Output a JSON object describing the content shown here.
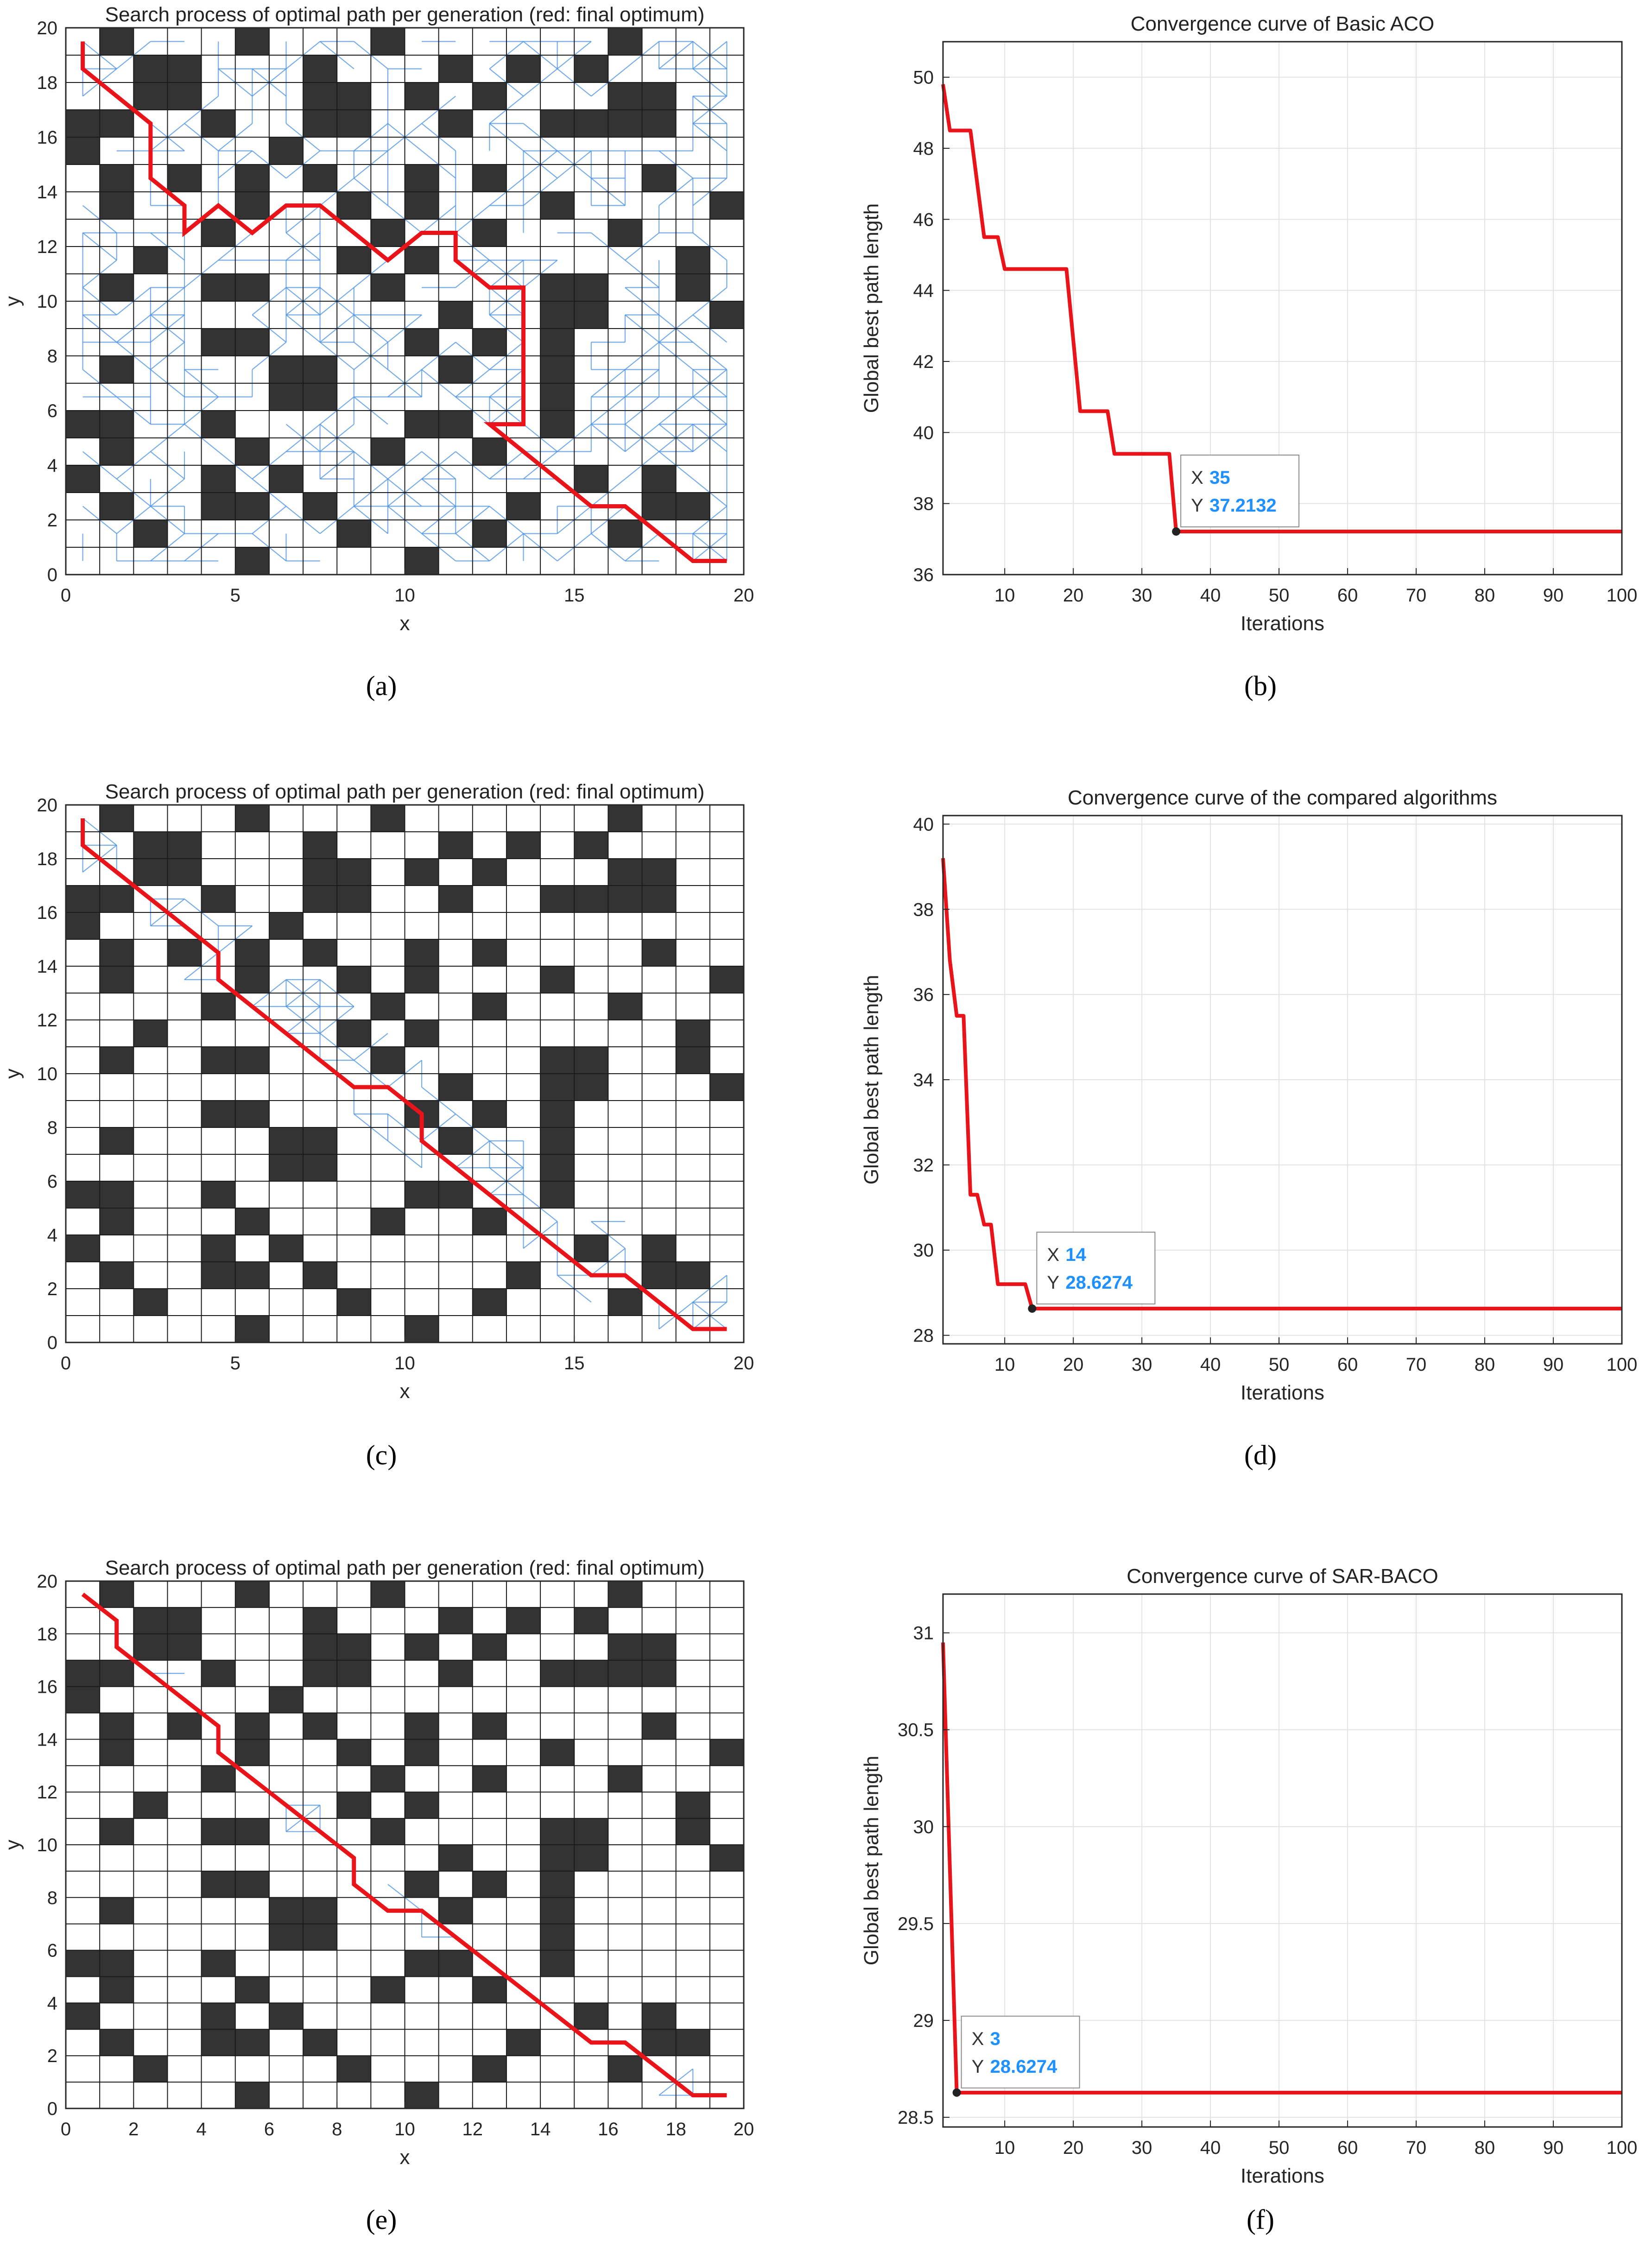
{
  "caption_labels": [
    "(a)",
    "(b)",
    "(c)",
    "(d)",
    "(e)",
    "(f)"
  ],
  "colors": {
    "path": "#e8141a",
    "search": "#4a90e2",
    "obstacle": "#333333",
    "grid": "#1a1a1a",
    "tip_value": "#1e90ff"
  },
  "obstacles": [
    [
      1,
      19
    ],
    [
      5,
      19
    ],
    [
      9,
      19
    ],
    [
      16,
      19
    ],
    [
      2,
      18
    ],
    [
      3,
      18
    ],
    [
      7,
      18
    ],
    [
      11,
      18
    ],
    [
      13,
      18
    ],
    [
      15,
      18
    ],
    [
      2,
      17
    ],
    [
      3,
      17
    ],
    [
      7,
      17
    ],
    [
      8,
      17
    ],
    [
      10,
      17
    ],
    [
      12,
      17
    ],
    [
      16,
      17
    ],
    [
      17,
      17
    ],
    [
      0,
      16
    ],
    [
      1,
      16
    ],
    [
      4,
      16
    ],
    [
      7,
      16
    ],
    [
      8,
      16
    ],
    [
      11,
      16
    ],
    [
      14,
      16
    ],
    [
      15,
      16
    ],
    [
      16,
      16
    ],
    [
      17,
      16
    ],
    [
      0,
      15
    ],
    [
      6,
      15
    ],
    [
      1,
      14
    ],
    [
      3,
      14
    ],
    [
      5,
      14
    ],
    [
      7,
      14
    ],
    [
      10,
      14
    ],
    [
      12,
      14
    ],
    [
      17,
      14
    ],
    [
      1,
      13
    ],
    [
      5,
      13
    ],
    [
      8,
      13
    ],
    [
      10,
      13
    ],
    [
      14,
      13
    ],
    [
      19,
      13
    ],
    [
      4,
      12
    ],
    [
      9,
      12
    ],
    [
      12,
      12
    ],
    [
      16,
      12
    ],
    [
      2,
      11
    ],
    [
      8,
      11
    ],
    [
      10,
      11
    ],
    [
      18,
      11
    ],
    [
      1,
      10
    ],
    [
      4,
      10
    ],
    [
      5,
      10
    ],
    [
      9,
      10
    ],
    [
      14,
      10
    ],
    [
      15,
      10
    ],
    [
      18,
      10
    ],
    [
      11,
      9
    ],
    [
      14,
      9
    ],
    [
      15,
      9
    ],
    [
      19,
      9
    ],
    [
      4,
      8
    ],
    [
      5,
      8
    ],
    [
      10,
      8
    ],
    [
      12,
      8
    ],
    [
      14,
      8
    ],
    [
      1,
      7
    ],
    [
      6,
      7
    ],
    [
      7,
      7
    ],
    [
      11,
      7
    ],
    [
      14,
      7
    ],
    [
      6,
      6
    ],
    [
      7,
      6
    ],
    [
      14,
      6
    ],
    [
      0,
      5
    ],
    [
      1,
      5
    ],
    [
      4,
      5
    ],
    [
      10,
      5
    ],
    [
      11,
      5
    ],
    [
      14,
      5
    ],
    [
      1,
      4
    ],
    [
      5,
      4
    ],
    [
      9,
      4
    ],
    [
      12,
      4
    ],
    [
      0,
      3
    ],
    [
      4,
      3
    ],
    [
      6,
      3
    ],
    [
      15,
      3
    ],
    [
      17,
      3
    ],
    [
      1,
      2
    ],
    [
      4,
      2
    ],
    [
      5,
      2
    ],
    [
      7,
      2
    ],
    [
      13,
      2
    ],
    [
      17,
      2
    ],
    [
      18,
      2
    ],
    [
      2,
      1
    ],
    [
      8,
      1
    ],
    [
      12,
      1
    ],
    [
      16,
      1
    ],
    [
      5,
      0
    ],
    [
      10,
      0
    ]
  ],
  "charts": [
    {
      "id": "a",
      "type": "grid-path",
      "title": "Search process of optimal path per generation (red: final optimum)",
      "xlabel": "x",
      "ylabel": "y",
      "xlim": [
        0,
        20
      ],
      "ylim": [
        0,
        20
      ],
      "xticks": [
        0,
        5,
        10,
        15,
        20
      ],
      "yticks": [
        0,
        2,
        4,
        6,
        8,
        10,
        12,
        14,
        16,
        18,
        20
      ],
      "search_density": 0.58,
      "path": [
        [
          0.5,
          19.5
        ],
        [
          0.5,
          18.5
        ],
        [
          2.5,
          16.5
        ],
        [
          2.5,
          14.5
        ],
        [
          3.5,
          13.5
        ],
        [
          3.5,
          12.5
        ],
        [
          4.5,
          13.5
        ],
        [
          5.5,
          12.5
        ],
        [
          6.5,
          13.5
        ],
        [
          7.5,
          13.5
        ],
        [
          9.5,
          11.5
        ],
        [
          10.5,
          12.5
        ],
        [
          11.5,
          12.5
        ],
        [
          11.5,
          11.5
        ],
        [
          12.5,
          10.5
        ],
        [
          13.5,
          10.5
        ],
        [
          13.5,
          5.5
        ],
        [
          12.5,
          5.5
        ],
        [
          15.5,
          2.5
        ],
        [
          16.5,
          2.5
        ],
        [
          18.5,
          0.5
        ],
        [
          19.5,
          0.5
        ]
      ]
    },
    {
      "id": "b",
      "type": "line",
      "title": "Convergence curve of Basic ACO",
      "xlabel": "Iterations",
      "ylabel": "Global best path length",
      "xlim": [
        1,
        100
      ],
      "ylim": [
        36,
        51
      ],
      "xticks": [
        10,
        20,
        30,
        40,
        50,
        60,
        70,
        80,
        90,
        100
      ],
      "yticks": [
        36,
        38,
        40,
        42,
        44,
        46,
        48,
        50
      ],
      "x": [
        1,
        2,
        5,
        7,
        9,
        10,
        19,
        21,
        25,
        26,
        34,
        35,
        100
      ],
      "y": [
        49.8,
        48.5,
        48.5,
        45.5,
        45.5,
        44.6,
        44.6,
        40.6,
        40.6,
        39.4,
        39.4,
        37.2132,
        37.2132
      ],
      "tip": {
        "x": 35,
        "y": 37.2132,
        "x_label": "X",
        "y_label": "Y",
        "x_text": "35",
        "y_text": "37.2132"
      }
    },
    {
      "id": "c",
      "type": "grid-path",
      "title": "Search process of optimal path per generation (red: final optimum)",
      "xlabel": "x",
      "ylabel": "y",
      "xlim": [
        0,
        20
      ],
      "ylim": [
        0,
        20
      ],
      "xticks": [
        0,
        5,
        10,
        15,
        20
      ],
      "yticks": [
        0,
        2,
        4,
        6,
        8,
        10,
        12,
        14,
        16,
        18,
        20
      ],
      "search_band": [
        [
          1,
          18.5
        ],
        [
          3,
          16.5
        ],
        [
          4.5,
          14.5
        ],
        [
          6,
          13.5
        ],
        [
          8,
          11.5
        ],
        [
          10,
          9
        ],
        [
          12,
          7
        ],
        [
          13.5,
          5
        ],
        [
          16,
          3
        ],
        [
          18.5,
          1.5
        ]
      ],
      "search_spread": 1.6,
      "path": [
        [
          0.5,
          19.5
        ],
        [
          0.5,
          18.5
        ],
        [
          4.5,
          14.5
        ],
        [
          4.5,
          13.5
        ],
        [
          8.5,
          9.5
        ],
        [
          9.5,
          9.5
        ],
        [
          10.5,
          8.5
        ],
        [
          10.5,
          7.5
        ],
        [
          15.5,
          2.5
        ],
        [
          16.5,
          2.5
        ],
        [
          18.5,
          0.5
        ],
        [
          19.5,
          0.5
        ]
      ]
    },
    {
      "id": "d",
      "type": "line",
      "title": "Convergence curve of the compared algorithms",
      "xlabel": "Iterations",
      "ylabel": "Global best path length",
      "xlim": [
        1,
        100
      ],
      "ylim": [
        27.8,
        40.2
      ],
      "xticks": [
        10,
        20,
        30,
        40,
        50,
        60,
        70,
        80,
        90,
        100
      ],
      "yticks": [
        28,
        30,
        32,
        34,
        36,
        38,
        40
      ],
      "x": [
        1,
        2,
        3,
        4,
        5,
        6,
        7,
        8,
        9,
        10,
        13,
        14,
        100
      ],
      "y": [
        39.2,
        36.8,
        35.5,
        35.5,
        31.3,
        31.3,
        30.6,
        30.6,
        29.2,
        29.2,
        29.2,
        28.6274,
        28.6274
      ],
      "tip": {
        "x": 14,
        "y": 28.6274,
        "x_label": "X",
        "y_label": "Y",
        "x_text": "14",
        "y_text": "28.6274"
      }
    },
    {
      "id": "e",
      "type": "grid-path",
      "title": "Search process of optimal path per generation (red: final optimum)",
      "xlabel": "x",
      "ylabel": "y",
      "xlim": [
        0,
        20
      ],
      "ylim": [
        0,
        20
      ],
      "xticks": [
        0,
        2,
        4,
        6,
        8,
        10,
        12,
        14,
        16,
        18,
        20
      ],
      "yticks": [
        0,
        2,
        4,
        6,
        8,
        10,
        12,
        14,
        16,
        18,
        20
      ],
      "search_band": [
        [
          1,
          18.5
        ],
        [
          3,
          16.5
        ],
        [
          5,
          13.5
        ],
        [
          7,
          11
        ],
        [
          9,
          8.5
        ],
        [
          11,
          7
        ],
        [
          13,
          5.5
        ],
        [
          15.5,
          3
        ],
        [
          18,
          1
        ]
      ],
      "search_spread": 0.8,
      "path": [
        [
          0.5,
          19.5
        ],
        [
          1.5,
          18.5
        ],
        [
          1.5,
          17.5
        ],
        [
          4.5,
          14.5
        ],
        [
          4.5,
          13.5
        ],
        [
          8.5,
          9.5
        ],
        [
          8.5,
          8.5
        ],
        [
          9.5,
          7.5
        ],
        [
          10.5,
          7.5
        ],
        [
          15.5,
          2.5
        ],
        [
          16.5,
          2.5
        ],
        [
          18.5,
          0.5
        ],
        [
          19.5,
          0.5
        ]
      ]
    },
    {
      "id": "f",
      "type": "line",
      "title": "Convergence curve of SAR-BACO",
      "xlabel": "Iterations",
      "ylabel": "Global best path length",
      "xlim": [
        1,
        100
      ],
      "ylim": [
        28.45,
        31.2
      ],
      "xticks": [
        10,
        20,
        30,
        40,
        50,
        60,
        70,
        80,
        90,
        100
      ],
      "yticks": [
        28.5,
        29,
        29.5,
        30,
        30.5,
        31
      ],
      "x": [
        1,
        3,
        100
      ],
      "y": [
        30.95,
        28.6274,
        28.6274
      ],
      "tip": {
        "x": 3,
        "y": 28.6274,
        "x_label": "X",
        "y_label": "Y",
        "x_text": "3",
        "y_text": "28.6274"
      }
    }
  ]
}
